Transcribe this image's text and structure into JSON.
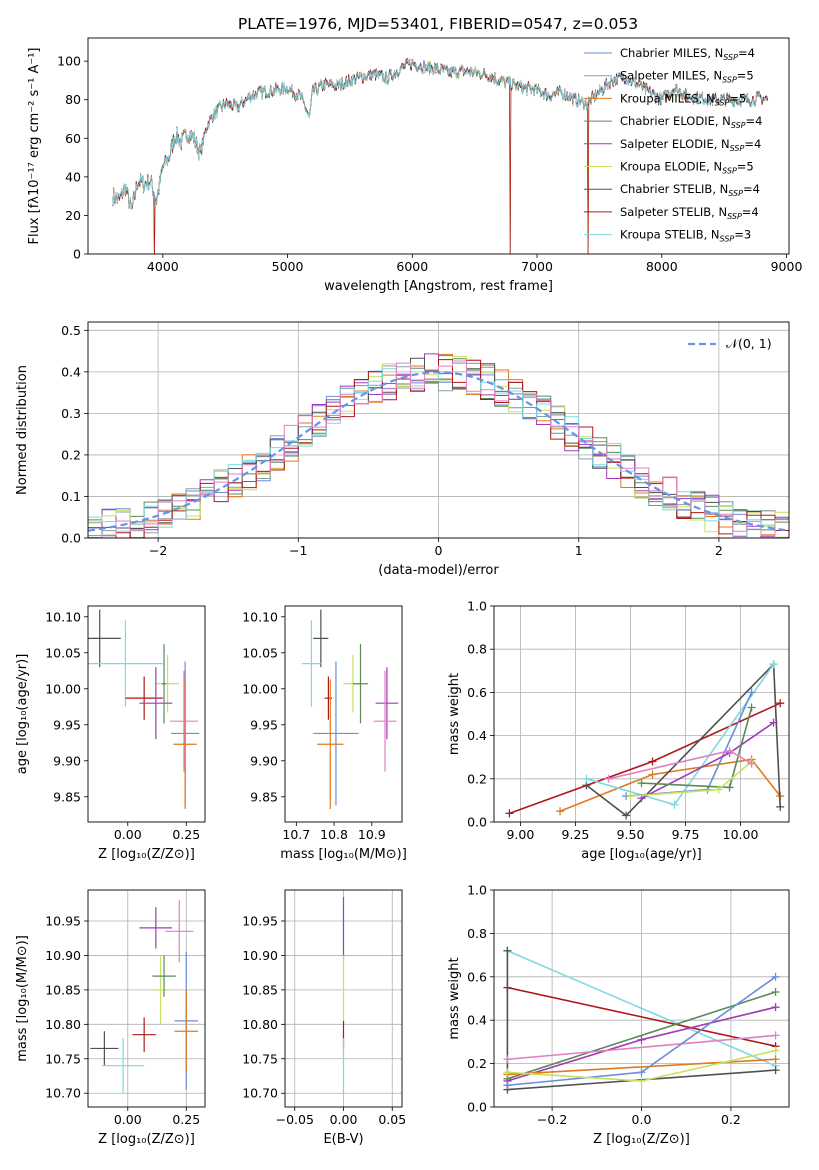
{
  "title": "PLATE=1976, MJD=53401, FIBERID=0547, z=0.053",
  "colors": {
    "chabrier_miles": "#6a8fd8",
    "salpeter_miles": "#8aa0a8",
    "kroupa_miles": "#e07a1f",
    "chabrier_elodie": "#5a8a5a",
    "salpeter_elodie": "#a03ab8",
    "kroupa_elodie": "#c8e060",
    "chabrier_stelib": "#505050",
    "salpeter_stelib": "#b01818",
    "kroupa_stelib": "#7fd8e0",
    "salpeter_extra": "#e080c0"
  },
  "chart_data": [
    {
      "id": "spectrum",
      "type": "line",
      "xlabel": "wavelength [Angstrom, rest frame]",
      "ylabel": "Flux [fλ10⁻¹⁷ erg cm⁻² s⁻¹ A⁻¹]",
      "xlim": [
        3400,
        9020
      ],
      "ylim": [
        0,
        112
      ],
      "xticks": [
        "4000",
        "5000",
        "6000",
        "7000",
        "8000",
        "9000"
      ],
      "xtick_values": [
        4000,
        5000,
        6000,
        7000,
        8000,
        9000
      ],
      "yticks": [
        "0",
        "20",
        "40",
        "60",
        "80",
        "100"
      ],
      "ytick_values": [
        0,
        20,
        40,
        60,
        80,
        100
      ],
      "grid": false,
      "legend_position": "top-right",
      "legend": [
        {
          "text": "Chabrier MILES, N_SSP=4",
          "color_key": "chabrier_miles"
        },
        {
          "text": "Salpeter MILES, N_SSP=5",
          "color_key": "salpeter_miles"
        },
        {
          "text": "Kroupa MILES, N_SSP=5",
          "color_key": "kroupa_miles"
        },
        {
          "text": "Chabrier ELODIE, N_SSP=4",
          "color_key": "chabrier_elodie"
        },
        {
          "text": "Salpeter ELODIE, N_SSP=4",
          "color_key": "salpeter_elodie"
        },
        {
          "text": "Kroupa ELODIE, N_SSP=5",
          "color_key": "kroupa_elodie"
        },
        {
          "text": "Chabrier STELIB, N_SSP=4",
          "color_key": "chabrier_stelib"
        },
        {
          "text": "Salpeter STELIB, N_SSP=4",
          "color_key": "salpeter_stelib"
        },
        {
          "text": "Kroupa STELIB, N_SSP=3",
          "color_key": "kroupa_stelib"
        }
      ],
      "spectrum_x": [
        3600,
        3650,
        3700,
        3750,
        3800,
        3850,
        3900,
        3950,
        4000,
        4050,
        4100,
        4150,
        4200,
        4250,
        4300,
        4350,
        4400,
        4500,
        4600,
        4700,
        4800,
        4900,
        5000,
        5100,
        5150,
        5175,
        5200,
        5300,
        5400,
        5500,
        5600,
        5700,
        5800,
        5900,
        6000,
        6100,
        6200,
        6300,
        6400,
        6500,
        6600,
        6700,
        6800,
        6900,
        7000,
        7100,
        7200,
        7300,
        7400,
        7500,
        7600,
        7700,
        7800,
        7900,
        8000,
        8100,
        8200,
        8300,
        8400,
        8500,
        8600,
        8700,
        8800,
        8850
      ],
      "spectrum_y": [
        30,
        28,
        35,
        22,
        38,
        36,
        38,
        28,
        45,
        50,
        62,
        58,
        63,
        60,
        52,
        66,
        72,
        78,
        76,
        82,
        84,
        85,
        86,
        82,
        75,
        70,
        84,
        88,
        87,
        90,
        92,
        93,
        91,
        96,
        99,
        97,
        96,
        94,
        95,
        94,
        93,
        90,
        88,
        86,
        85,
        82,
        84,
        80,
        78,
        84,
        90,
        92,
        88,
        84,
        80,
        86,
        82,
        81,
        80,
        80,
        80,
        80,
        81,
        80
      ],
      "absorption_lines_x": [
        3934,
        6786,
        7410
      ]
    },
    {
      "id": "residuals",
      "type": "line",
      "xlabel": "(data-model)/error",
      "ylabel": "Normed distribution",
      "xlim": [
        -2.5,
        2.5
      ],
      "ylim": [
        0,
        0.52
      ],
      "xticks": [
        "−2",
        "−1",
        "0",
        "1",
        "2"
      ],
      "xtick_values": [
        -2,
        -1,
        0,
        1,
        2
      ],
      "yticks": [
        "0.0",
        "0.1",
        "0.2",
        "0.3",
        "0.4",
        "0.5"
      ],
      "ytick_values": [
        0,
        0.1,
        0.2,
        0.3,
        0.4,
        0.5
      ],
      "grid": true,
      "legend_position": "top-right",
      "legend": [
        {
          "text": "𝒩(0, 1)",
          "color": "#6495ed",
          "style": "dashed"
        }
      ],
      "bin_width": 0.1,
      "hist_start": -2.5,
      "hist_end": 2.5
    },
    {
      "id": "age_vs_Z",
      "type": "scatter",
      "xlabel": "Z [log₁₀(Z/Z⊙)]",
      "ylabel": "age  [log₁₀(age/yr)]",
      "xlim": [
        -0.17,
        0.33
      ],
      "ylim": [
        9.815,
        10.115
      ],
      "xticks": [
        "0.00",
        "0.25"
      ],
      "xtick_values": [
        0,
        0.25
      ],
      "yticks": [
        "9.85",
        "9.90",
        "9.95",
        "10.00",
        "10.05",
        "10.10"
      ],
      "ytick_values": [
        9.85,
        9.9,
        9.95,
        10.0,
        10.05,
        10.1
      ],
      "grid": false,
      "points": [
        {
          "c": "chabrier_stelib",
          "x": -0.12,
          "y": 10.07,
          "ex": 0.09,
          "ey": 0.04
        },
        {
          "c": "kroupa_stelib",
          "x": -0.01,
          "y": 10.035,
          "ex": 0.16,
          "ey": 0.06
        },
        {
          "c": "kroupa_elodie",
          "x": 0.17,
          "y": 10.007,
          "ex": 0.05,
          "ey": 0.04
        },
        {
          "c": "salpeter_stelib",
          "x": 0.07,
          "y": 9.987,
          "ex": 0.08,
          "ey": 0.03
        },
        {
          "c": "salpeter_elodie",
          "x": 0.12,
          "y": 9.98,
          "ex": 0.07,
          "ey": 0.05
        },
        {
          "c": "chabrier_elodie",
          "x": 0.155,
          "y": 10.007,
          "ex": 0.01,
          "ey": 0.055
        },
        {
          "c": "salpeter_extra",
          "x": 0.24,
          "y": 9.955,
          "ex": 0.06,
          "ey": 0.07
        },
        {
          "c": "chabrier_miles",
          "x": 0.245,
          "y": 9.938,
          "ex": 0.06,
          "ey": 0.1
        },
        {
          "c": "kroupa_miles",
          "x": 0.245,
          "y": 9.923,
          "ex": 0.05,
          "ey": 0.09
        }
      ]
    },
    {
      "id": "age_vs_mass",
      "type": "scatter",
      "xlabel": "mass [log₁₀(M/M⊙)]",
      "ylabel": "",
      "xlim": [
        10.67,
        10.98
      ],
      "ylim": [
        9.815,
        10.115
      ],
      "xticks": [
        "10.7",
        "10.8",
        "10.9"
      ],
      "xtick_values": [
        10.7,
        10.8,
        10.9
      ],
      "yticks": [
        "9.85",
        "9.90",
        "9.95",
        "10.00",
        "10.05",
        "10.10"
      ],
      "ytick_values": [
        9.85,
        9.9,
        9.95,
        10.0,
        10.05,
        10.1
      ],
      "grid": false,
      "points": [
        {
          "c": "chabrier_stelib",
          "x": 10.765,
          "y": 10.07,
          "ex": 0.02,
          "ey": 0.04
        },
        {
          "c": "kroupa_stelib",
          "x": 10.74,
          "y": 10.035,
          "ex": 0.025,
          "ey": 0.06
        },
        {
          "c": "kroupa_elodie",
          "x": 10.85,
          "y": 10.007,
          "ex": 0.025,
          "ey": 0.04
        },
        {
          "c": "salpeter_stelib",
          "x": 10.785,
          "y": 9.987,
          "ex": 0.01,
          "ey": 0.03
        },
        {
          "c": "salpeter_elodie",
          "x": 10.94,
          "y": 9.98,
          "ex": 0.03,
          "ey": 0.05
        },
        {
          "c": "chabrier_elodie",
          "x": 10.87,
          "y": 10.007,
          "ex": 0.02,
          "ey": 0.055
        },
        {
          "c": "salpeter_extra",
          "x": 10.935,
          "y": 9.955,
          "ex": 0.03,
          "ey": 0.07
        },
        {
          "c": "chabrier_miles",
          "x": 10.805,
          "y": 9.938,
          "ex": 0.06,
          "ey": 0.1
        },
        {
          "c": "kroupa_miles",
          "x": 10.79,
          "y": 9.923,
          "ex": 0.035,
          "ey": 0.09
        }
      ]
    },
    {
      "id": "weight_vs_age",
      "type": "line",
      "xlabel": "age  [log₁₀(age/yr)]",
      "ylabel": "mass weight",
      "xlim": [
        8.88,
        10.22
      ],
      "ylim": [
        0,
        1.0
      ],
      "xticks": [
        "9.00",
        "9.25",
        "9.50",
        "9.75",
        "10.00"
      ],
      "xtick_values": [
        9.0,
        9.25,
        9.5,
        9.75,
        10.0
      ],
      "yticks": [
        "0.0",
        "0.2",
        "0.4",
        "0.6",
        "0.8",
        "1.0"
      ],
      "ytick_values": [
        0,
        0.2,
        0.4,
        0.6,
        0.8,
        1.0
      ],
      "grid": true,
      "series": [
        {
          "c": "salpeter_stelib",
          "x": [
            8.95,
            9.6,
            10.18
          ],
          "y": [
            0.04,
            0.28,
            0.55
          ]
        },
        {
          "c": "kroupa_miles",
          "x": [
            9.18,
            9.6,
            10.05,
            10.18
          ],
          "y": [
            0.05,
            0.22,
            0.29,
            0.12
          ]
        },
        {
          "c": "chabrier_stelib",
          "x": [
            9.3,
            9.48,
            10.15,
            10.18
          ],
          "y": [
            0.17,
            0.03,
            0.73,
            0.07
          ]
        },
        {
          "c": "kroupa_stelib",
          "x": [
            9.3,
            9.7,
            10.15
          ],
          "y": [
            0.2,
            0.08,
            0.73
          ]
        },
        {
          "c": "chabrier_miles",
          "x": [
            9.48,
            9.85,
            10.05
          ],
          "y": [
            0.12,
            0.15,
            0.6
          ]
        },
        {
          "c": "salpeter_elodie",
          "x": [
            9.55,
            9.95,
            10.15
          ],
          "y": [
            0.11,
            0.32,
            0.46
          ]
        },
        {
          "c": "chabrier_elodie",
          "x": [
            9.55,
            9.95,
            10.05
          ],
          "y": [
            0.18,
            0.16,
            0.53
          ]
        },
        {
          "c": "kroupa_elodie",
          "x": [
            9.5,
            9.9,
            10.05
          ],
          "y": [
            0.12,
            0.15,
            0.28
          ]
        },
        {
          "c": "salpeter_extra",
          "x": [
            9.4,
            9.95,
            10.05
          ],
          "y": [
            0.2,
            0.33,
            0.27
          ]
        }
      ]
    },
    {
      "id": "mass_vs_Z",
      "type": "scatter",
      "xlabel": "Z [log₁₀(Z/Z⊙)]",
      "ylabel": "mass [log₁₀(M/M⊙)]",
      "xlim": [
        -0.17,
        0.33
      ],
      "ylim": [
        10.68,
        10.995
      ],
      "xticks": [
        "0.00",
        "0.25"
      ],
      "xtick_values": [
        0,
        0.25
      ],
      "yticks": [
        "10.70",
        "10.75",
        "10.80",
        "10.85",
        "10.90",
        "10.95"
      ],
      "ytick_values": [
        10.7,
        10.75,
        10.8,
        10.85,
        10.9,
        10.95
      ],
      "grid": true,
      "points": [
        {
          "c": "chabrier_stelib",
          "x": -0.1,
          "y": 10.765,
          "ex": 0.06,
          "ey": 0.025
        },
        {
          "c": "kroupa_stelib",
          "x": -0.02,
          "y": 10.74,
          "ex": 0.09,
          "ey": 0.04
        },
        {
          "c": "salpeter_stelib",
          "x": 0.07,
          "y": 10.785,
          "ex": 0.05,
          "ey": 0.025
        },
        {
          "c": "salpeter_elodie",
          "x": 0.12,
          "y": 10.94,
          "ex": 0.07,
          "ey": 0.03
        },
        {
          "c": "kroupa_elodie",
          "x": 0.14,
          "y": 10.85,
          "ex": 0.04,
          "ey": 0.05
        },
        {
          "c": "chabrier_elodie",
          "x": 0.155,
          "y": 10.87,
          "ex": 0.05,
          "ey": 0.03
        },
        {
          "c": "salpeter_extra",
          "x": 0.22,
          "y": 10.935,
          "ex": 0.06,
          "ey": 0.045
        },
        {
          "c": "chabrier_miles",
          "x": 0.25,
          "y": 10.805,
          "ex": 0.05,
          "ey": 0.1
        },
        {
          "c": "kroupa_miles",
          "x": 0.25,
          "y": 10.79,
          "ex": 0.05,
          "ey": 0.06
        }
      ]
    },
    {
      "id": "mass_vs_ebv",
      "type": "scatter",
      "xlabel": "E(B-V)",
      "ylabel": "",
      "xlim": [
        -0.06,
        0.06
      ],
      "ylim": [
        10.68,
        10.995
      ],
      "xticks": [
        "−0.05",
        "0.00",
        "0.05"
      ],
      "xtick_values": [
        -0.05,
        0,
        0.05
      ],
      "yticks": [
        "10.70",
        "10.75",
        "10.80",
        "10.85",
        "10.90",
        "10.95"
      ],
      "ytick_values": [
        10.7,
        10.75,
        10.8,
        10.85,
        10.9,
        10.95
      ],
      "grid": true,
      "points": [
        {
          "c": "salpeter_elodie",
          "x": 0,
          "y": 10.94,
          "ex": 0,
          "ey": 0.045
        },
        {
          "c": "kroupa_elodie",
          "x": 0,
          "y": 10.85,
          "ex": 0,
          "ey": 0.05
        },
        {
          "c": "salpeter_stelib",
          "x": 0,
          "y": 10.785,
          "ex": 0,
          "ey": 0.02
        },
        {
          "c": "kroupa_stelib",
          "x": 0,
          "y": 10.74,
          "ex": 0,
          "ey": 0.04
        }
      ]
    },
    {
      "id": "weight_vs_Z",
      "type": "line",
      "xlabel": "Z [log₁₀(Z/Z⊙)]",
      "ylabel": "mass weight",
      "xlim": [
        -0.33,
        0.33
      ],
      "ylim": [
        0,
        1.0
      ],
      "xticks": [
        "−0.2",
        "0.0",
        "0.2"
      ],
      "xtick_values": [
        -0.2,
        0,
        0.2
      ],
      "yticks": [
        "0.0",
        "0.2",
        "0.4",
        "0.6",
        "0.8",
        "1.0"
      ],
      "ytick_values": [
        0,
        0.2,
        0.4,
        0.6,
        0.8,
        1.0
      ],
      "grid": true,
      "series": [
        {
          "c": "kroupa_stelib",
          "x": [
            -0.3,
            0.3
          ],
          "y": [
            0.72,
            0.19
          ]
        },
        {
          "c": "salpeter_stelib",
          "x": [
            -0.3,
            0.3
          ],
          "y": [
            0.55,
            0.28
          ]
        },
        {
          "c": "chabrier_stelib",
          "x": [
            -0.3,
            -0.3,
            0.3
          ],
          "y": [
            0.72,
            0.08,
            0.17
          ]
        },
        {
          "c": "salpeter_elodie",
          "x": [
            -0.3,
            0.0,
            0.3
          ],
          "y": [
            0.12,
            0.31,
            0.46
          ]
        },
        {
          "c": "chabrier_elodie",
          "x": [
            -0.3,
            0.3
          ],
          "y": [
            0.13,
            0.53
          ]
        },
        {
          "c": "salpeter_extra",
          "x": [
            -0.3,
            0.3
          ],
          "y": [
            0.22,
            0.33
          ]
        },
        {
          "c": "kroupa_miles",
          "x": [
            -0.3,
            0.3
          ],
          "y": [
            0.15,
            0.22
          ]
        },
        {
          "c": "chabrier_miles",
          "x": [
            -0.3,
            0.0,
            0.3
          ],
          "y": [
            0.1,
            0.16,
            0.6
          ]
        },
        {
          "c": "kroupa_elodie",
          "x": [
            -0.3,
            0.0,
            0.3
          ],
          "y": [
            0.16,
            0.12,
            0.26
          ]
        }
      ]
    }
  ]
}
